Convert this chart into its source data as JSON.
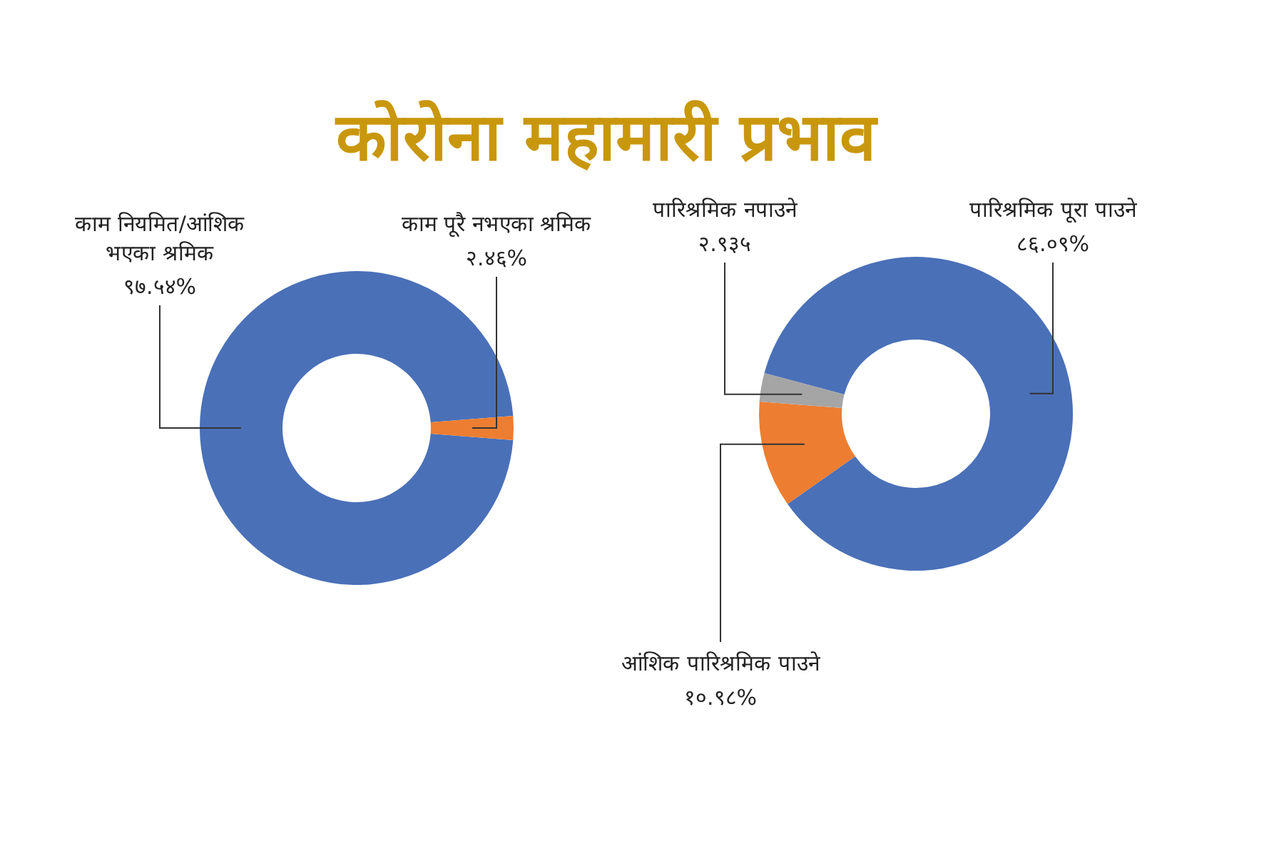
{
  "chart_data": [
    {
      "type": "donut",
      "title": "कोरोना महामारी प्रभाव",
      "categories": [
        "काम नियमित/आंशिक भएका श्रमिक",
        "काम पूरै नभएका श्रमिक"
      ],
      "values": [
        97.54,
        2.46
      ],
      "value_labels": [
        "९७.५४%",
        "२.४६%"
      ],
      "colors": [
        "#4a70b8",
        "#ed7d31"
      ]
    },
    {
      "type": "donut",
      "categories": [
        "पारिश्रमिक पूरा पाउने",
        "आंशिक पारिश्रमिक पाउने",
        "पारिश्रमिक नपाउने"
      ],
      "values": [
        86.09,
        10.98,
        2.935
      ],
      "value_labels": [
        "८६.०९%",
        "१०.९८%",
        "२.९३५"
      ],
      "colors": [
        "#4a70b8",
        "#ed7d31",
        "#a5a5a5"
      ]
    }
  ]
}
